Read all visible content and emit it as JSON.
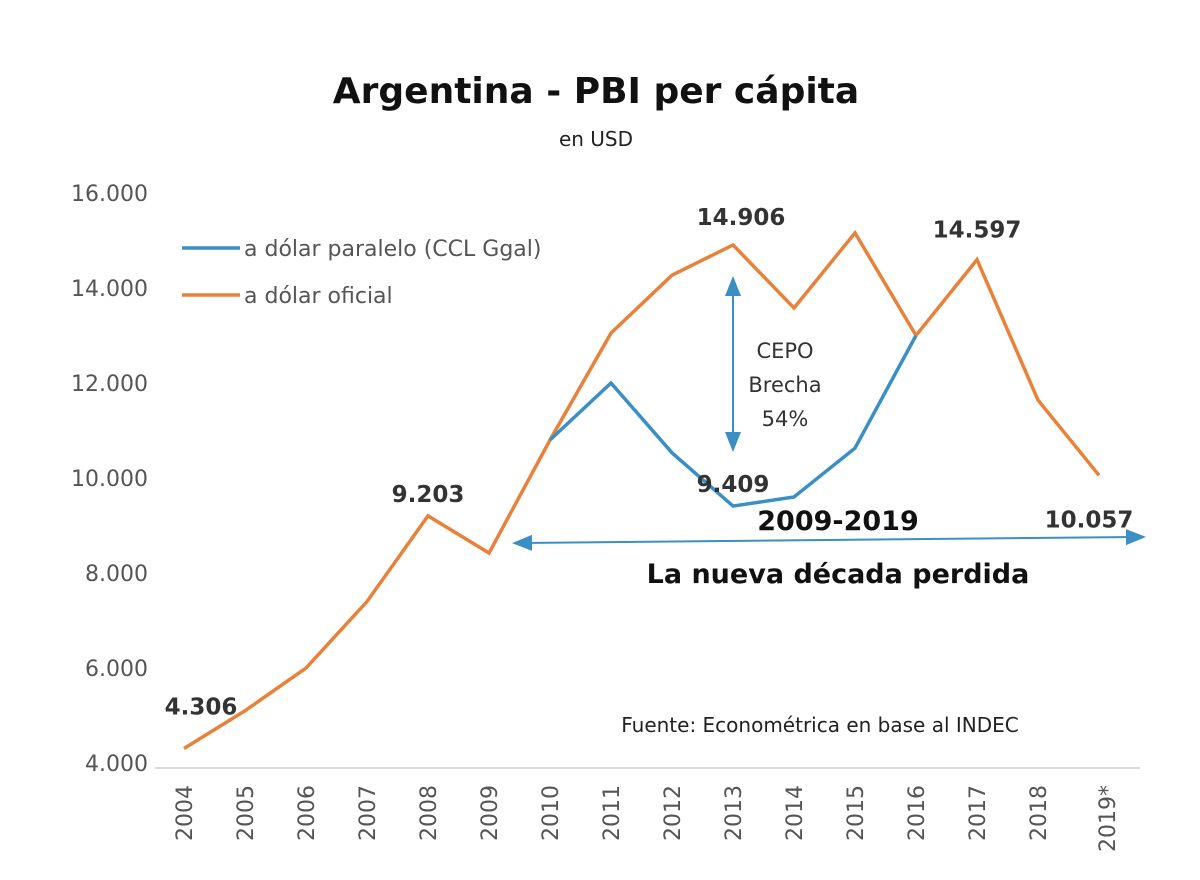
{
  "chart_data": {
    "type": "line",
    "title": "Argentina - PBI per cápita",
    "subtitle": "en USD",
    "xlabel": "",
    "ylabel": "",
    "categories": [
      "2004",
      "2005",
      "2006",
      "2007",
      "2008",
      "2009",
      "2010",
      "2011",
      "2012",
      "2013",
      "2014",
      "2015",
      "2016",
      "2017",
      "2018",
      "2019*"
    ],
    "yticks": [
      "4.000",
      "6.000",
      "8.000",
      "10.000",
      "12.000",
      "14.000",
      "16.000"
    ],
    "ylim": [
      4000,
      16000
    ],
    "grid": false,
    "legend_position": "top-left",
    "series": [
      {
        "name": "a dólar paralelo (CCL Ggal)",
        "color": "#3a8fc4",
        "values": [
          null,
          null,
          null,
          null,
          null,
          null,
          10800,
          12000,
          10530,
          9409,
          9600,
          10630,
          13000,
          null,
          null,
          null
        ]
      },
      {
        "name": "a dólar oficial",
        "color": "#e8823a",
        "values": [
          4306,
          5100,
          6000,
          7400,
          9203,
          8420,
          10800,
          13050,
          14270,
          14906,
          13580,
          15160,
          13000,
          14597,
          11640,
          10057
        ]
      }
    ],
    "data_labels": [
      {
        "series": 1,
        "index": 0,
        "text": "4.306"
      },
      {
        "series": 1,
        "index": 4,
        "text": "9.203"
      },
      {
        "series": 1,
        "index": 9,
        "text": "14.906"
      },
      {
        "series": 0,
        "index": 9,
        "text": "9.409"
      },
      {
        "series": 1,
        "index": 13,
        "text": "14.597"
      },
      {
        "series": 1,
        "index": 15,
        "text": "10.057"
      }
    ],
    "annotations": {
      "gap_lines": [
        "CEPO",
        "Brecha",
        "54%"
      ],
      "period": "2009-2019",
      "period_caption": "La nueva década perdida",
      "arrow_color": "#3a8fc4"
    },
    "source": "Fuente: Econométrica en base al INDEC"
  }
}
